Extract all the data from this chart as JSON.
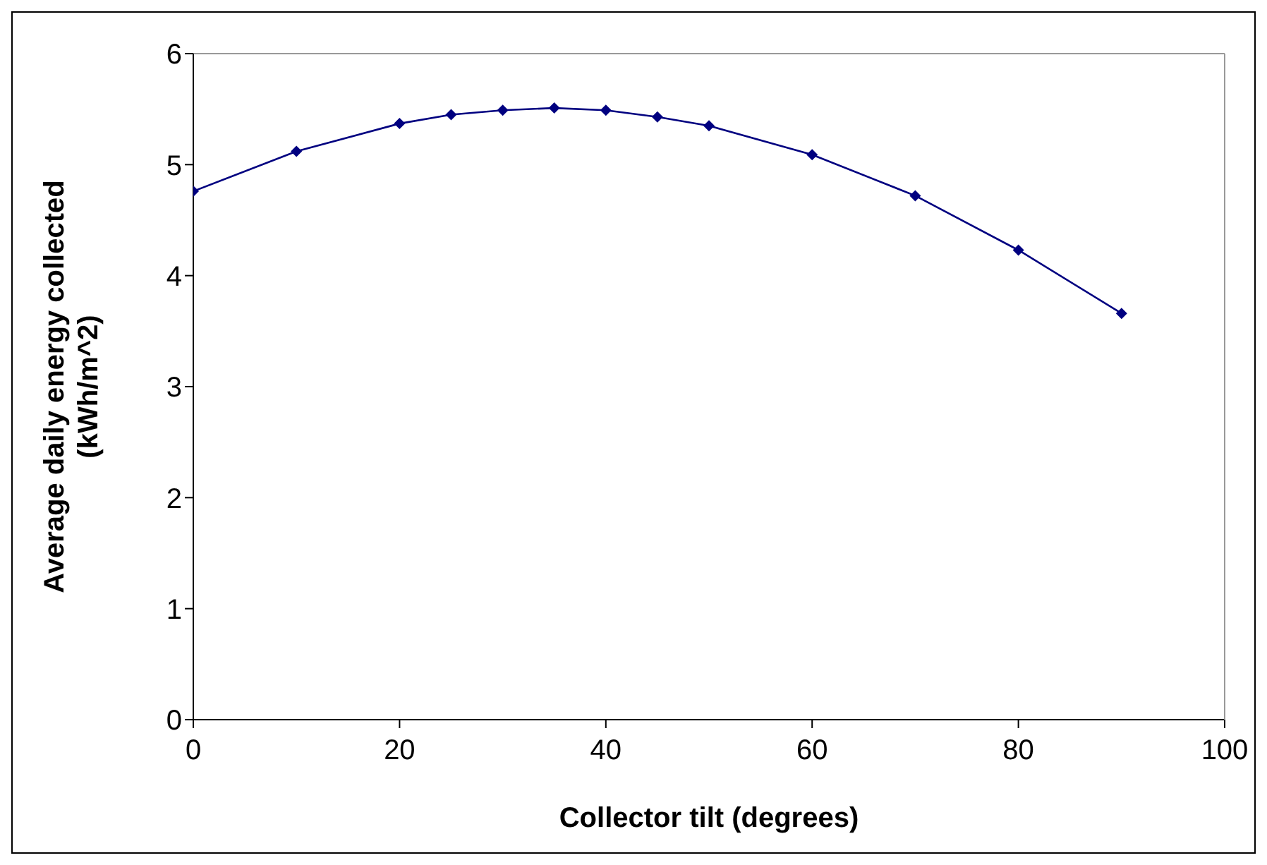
{
  "chart_data": {
    "type": "line",
    "xlabel": "Collector tilt (degrees)",
    "ylabel": "Average daily energy collected (kWh/m^2)",
    "x": [
      0,
      10,
      20,
      25,
      30,
      35,
      40,
      45,
      50,
      60,
      70,
      80,
      90
    ],
    "series": [
      {
        "color": "#000080",
        "values": [
          4.76,
          5.12,
          5.37,
          5.45,
          5.49,
          5.51,
          5.49,
          5.43,
          5.35,
          5.09,
          4.72,
          4.23,
          3.66
        ]
      }
    ],
    "xlim": [
      0,
      100
    ],
    "xticks": [
      0,
      20,
      40,
      60,
      80,
      100
    ],
    "ylim": [
      0,
      6
    ],
    "yticks": [
      0,
      1,
      2,
      3,
      4,
      5,
      6
    ],
    "grid": false,
    "legend": false,
    "marker": "diamond",
    "line_style": "solid"
  }
}
